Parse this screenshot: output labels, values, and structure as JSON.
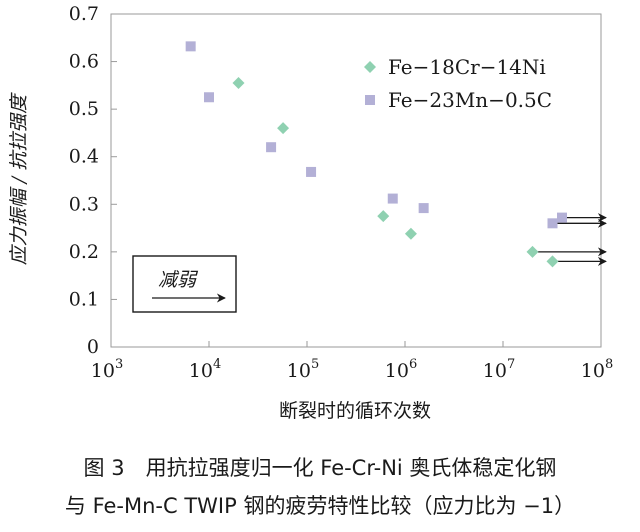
{
  "chart_data": {
    "type": "scatter",
    "title": "",
    "xlabel": "断裂时的循环次数",
    "ylabel": "应力振幅 / 抗拉强度",
    "x_scale": "log",
    "xlim": [
      1000,
      100000000
    ],
    "ylim": [
      0,
      0.7
    ],
    "x_ticks": [
      {
        "value": 1000,
        "base": "10",
        "exp": "3"
      },
      {
        "value": 10000,
        "base": "10",
        "exp": "4"
      },
      {
        "value": 100000,
        "base": "10",
        "exp": "5"
      },
      {
        "value": 1000000,
        "base": "10",
        "exp": "6"
      },
      {
        "value": 10000000,
        "base": "10",
        "exp": "7"
      },
      {
        "value": 100000000,
        "base": "10",
        "exp": "8"
      }
    ],
    "y_ticks": [
      {
        "value": 0,
        "label": "0"
      },
      {
        "value": 0.1,
        "label": "0.1"
      },
      {
        "value": 0.2,
        "label": "0.2"
      },
      {
        "value": 0.3,
        "label": "0.3"
      },
      {
        "value": 0.4,
        "label": "0.4"
      },
      {
        "value": 0.5,
        "label": "0.5"
      },
      {
        "value": 0.6,
        "label": "0.6"
      },
      {
        "value": 0.7,
        "label": "0.7"
      }
    ],
    "grid": false,
    "legend_position": "top-right",
    "series": [
      {
        "name": "Fe−18Cr−14Ni",
        "marker": "diamond",
        "color": "#8fd1b1",
        "points": [
          {
            "x": 20000,
            "y": 0.555
          },
          {
            "x": 57000,
            "y": 0.46
          },
          {
            "x": 600000,
            "y": 0.275
          },
          {
            "x": 1150000,
            "y": 0.238
          },
          {
            "x": 20000000,
            "y": 0.2
          },
          {
            "x": 32000000,
            "y": 0.18
          }
        ]
      },
      {
        "name": "Fe−23Mn−0.5C",
        "marker": "square",
        "color": "#b3b0d6",
        "points": [
          {
            "x": 6500,
            "y": 0.632
          },
          {
            "x": 10000,
            "y": 0.525
          },
          {
            "x": 43000,
            "y": 0.42
          },
          {
            "x": 110000,
            "y": 0.368
          },
          {
            "x": 750000,
            "y": 0.312
          },
          {
            "x": 1550000,
            "y": 0.292
          },
          {
            "x": 32000000,
            "y": 0.26
          },
          {
            "x": 40000000,
            "y": 0.272
          }
        ]
      }
    ],
    "runouts": [
      {
        "x": 20000000,
        "y": 0.2
      },
      {
        "x": 32000000,
        "y": 0.18
      },
      {
        "x": 32000000,
        "y": 0.26
      },
      {
        "x": 40000000,
        "y": 0.272
      }
    ],
    "annotation": {
      "label": "减弱"
    }
  },
  "caption": {
    "line1": "图 3　用抗拉强度归一化 Fe-Cr-Ni 奥氏体稳定化钢",
    "line2": "与 Fe-Mn-C TWIP 钢的疲劳特性比较（应力比为 −1）"
  }
}
